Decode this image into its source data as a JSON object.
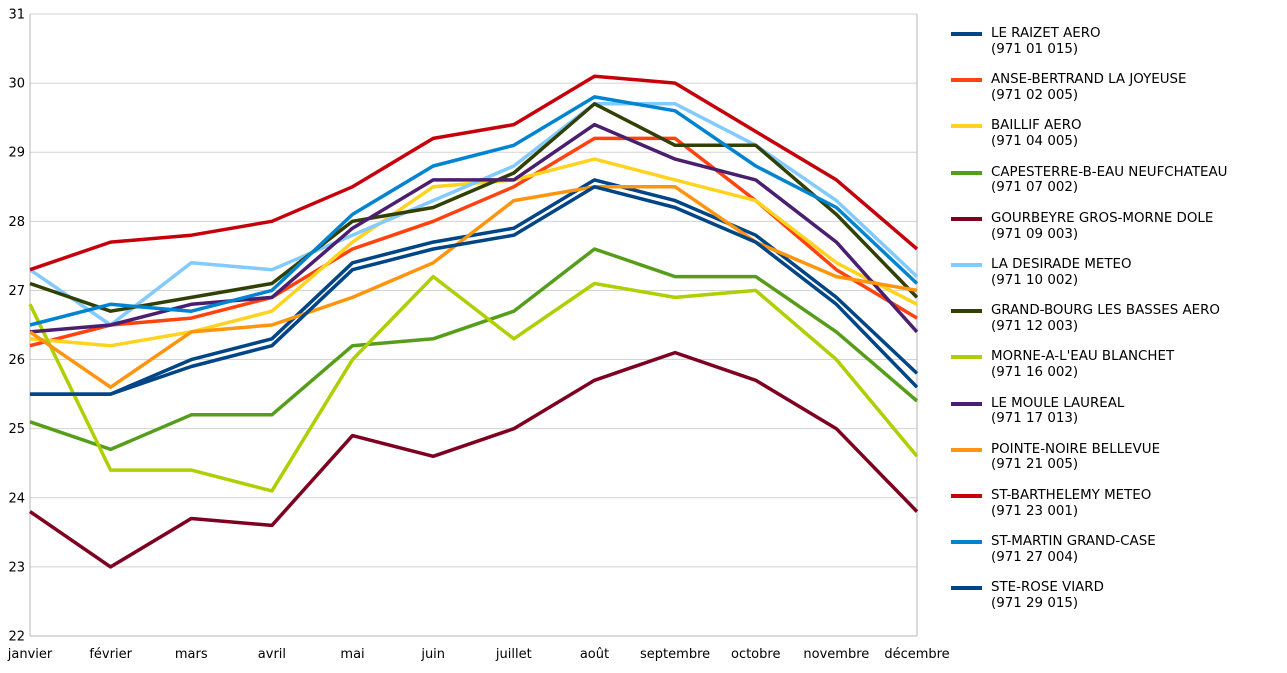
{
  "chart_data": {
    "type": "line",
    "title": "",
    "xlabel": "",
    "ylabel": "",
    "x_categories": [
      "janvier",
      "février",
      "mars",
      "avril",
      "mai",
      "juin",
      "juillet",
      "août",
      "septembre",
      "octobre",
      "novembre",
      "décembre"
    ],
    "ylim": [
      22,
      31
    ],
    "y_ticks": [
      22,
      23,
      24,
      25,
      26,
      27,
      28,
      29,
      30,
      31
    ],
    "grid": "horizontal-major",
    "legend_position": "right",
    "grid_color": "#d3d3d3",
    "border_color": "#b6b6b6",
    "series": [
      {
        "name": "LE RAIZET AERO",
        "code": "(971 01 015)",
        "color": "#004586",
        "values": [
          25.5,
          25.5,
          26.0,
          26.3,
          27.4,
          27.7,
          27.9,
          28.6,
          28.3,
          27.8,
          26.9,
          25.8
        ]
      },
      {
        "name": "ANSE-BERTRAND LA JOYEUSE",
        "code": "(971 02 005)",
        "color": "#FF420E",
        "values": [
          26.2,
          26.5,
          26.6,
          26.9,
          27.6,
          28.0,
          28.5,
          29.2,
          29.2,
          28.3,
          27.3,
          26.6
        ]
      },
      {
        "name": "BAILLIF AERO",
        "code": "(971 04 005)",
        "color": "#FFD320",
        "values": [
          26.3,
          26.2,
          26.4,
          26.7,
          27.7,
          28.5,
          28.6,
          28.9,
          28.6,
          28.3,
          27.4,
          26.8
        ]
      },
      {
        "name": "CAPESTERRE-B-EAU NEUFCHATEAU",
        "code": "(971 07 002)",
        "color": "#579D1C",
        "values": [
          25.1,
          24.7,
          25.2,
          25.2,
          26.2,
          26.3,
          26.7,
          27.6,
          27.2,
          27.2,
          26.4,
          25.4
        ]
      },
      {
        "name": "GOURBEYRE GROS-MORNE DOLE",
        "code": "(971 09 003)",
        "color": "#7E0021",
        "values": [
          23.8,
          23.0,
          23.7,
          23.6,
          24.9,
          24.6,
          25.0,
          25.7,
          26.1,
          25.7,
          25.0,
          23.8
        ]
      },
      {
        "name": "LA DESIRADE METEO",
        "code": "(971 10 002)",
        "color": "#83CAFF",
        "values": [
          27.3,
          26.5,
          27.4,
          27.3,
          27.8,
          28.3,
          28.8,
          29.7,
          29.7,
          29.1,
          28.3,
          27.2
        ]
      },
      {
        "name": "GRAND-BOURG LES BASSES AERO",
        "code": "(971 12 003)",
        "color": "#314004",
        "values": [
          27.1,
          26.7,
          26.9,
          27.1,
          28.0,
          28.2,
          28.7,
          29.7,
          29.1,
          29.1,
          28.1,
          26.9
        ]
      },
      {
        "name": "MORNE-A-L'EAU BLANCHET",
        "code": "(971 16 002)",
        "color": "#AECF00",
        "values": [
          26.8,
          24.4,
          24.4,
          24.1,
          26.0,
          27.2,
          26.3,
          27.1,
          26.9,
          27.0,
          26.0,
          24.6
        ]
      },
      {
        "name": "LE MOULE LAUREAL",
        "code": "(971 17 013)",
        "color": "#4B1F6F",
        "values": [
          26.4,
          26.5,
          26.8,
          26.9,
          27.9,
          28.6,
          28.6,
          29.4,
          28.9,
          28.6,
          27.7,
          26.4
        ]
      },
      {
        "name": "POINTE-NOIRE BELLEVUE",
        "code": "(971 21 005)",
        "color": "#FF950E",
        "values": [
          26.4,
          25.6,
          26.4,
          26.5,
          26.9,
          27.4,
          28.3,
          28.5,
          28.5,
          27.7,
          27.2,
          27.0
        ]
      },
      {
        "name": "ST-BARTHELEMY METEO",
        "code": "(971 23 001)",
        "color": "#C5000B",
        "values": [
          27.3,
          27.7,
          27.8,
          28.0,
          28.5,
          29.2,
          29.4,
          30.1,
          30.0,
          29.3,
          28.6,
          27.6
        ]
      },
      {
        "name": "ST-MARTIN GRAND-CASE",
        "code": "(971 27 004)",
        "color": "#0084D1",
        "values": [
          26.5,
          26.8,
          26.7,
          27.0,
          28.1,
          28.8,
          29.1,
          29.8,
          29.6,
          28.8,
          28.2,
          27.1
        ]
      },
      {
        "name": "STE-ROSE VIARD",
        "code": "(971 29 015)",
        "color": "#004586",
        "values": [
          25.5,
          25.5,
          25.9,
          26.2,
          27.3,
          27.6,
          27.8,
          28.5,
          28.2,
          27.7,
          26.8,
          25.6
        ]
      }
    ]
  }
}
